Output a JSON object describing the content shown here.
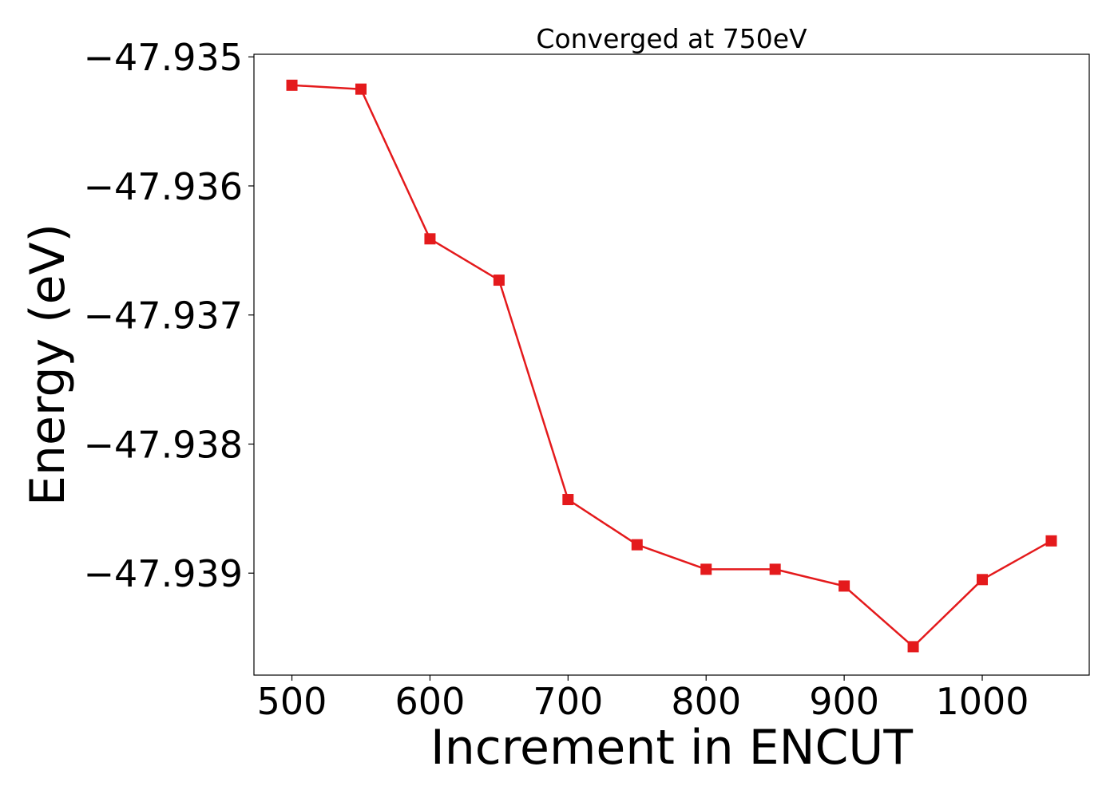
{
  "chart_data": {
    "type": "line",
    "title": "Converged at 750eV",
    "xlabel": "Increment in ENCUT",
    "ylabel": "Energy (eV)",
    "xlim": [
      472.5,
      1077.5
    ],
    "ylim": [
      -47.93979,
      -47.93498
    ],
    "xticks": [
      500,
      600,
      700,
      800,
      900,
      1000
    ],
    "xtick_labels": [
      "500",
      "600",
      "700",
      "800",
      "900",
      "1000"
    ],
    "yticks": [
      -47.935,
      -47.936,
      -47.937,
      -47.938,
      -47.939
    ],
    "ytick_labels": [
      "−47.935",
      "−47.936",
      "−47.937",
      "−47.938",
      "−47.939"
    ],
    "grid": false,
    "series": [
      {
        "color": "#e41a1c",
        "marker": "square",
        "x": [
          500,
          550,
          600,
          650,
          700,
          750,
          800,
          850,
          900,
          950,
          1000,
          1050
        ],
        "y": [
          -47.93522,
          -47.93525,
          -47.93641,
          -47.93673,
          -47.93843,
          -47.93878,
          -47.93897,
          -47.93897,
          -47.9391,
          -47.93957,
          -47.93905,
          -47.93875
        ]
      }
    ]
  }
}
